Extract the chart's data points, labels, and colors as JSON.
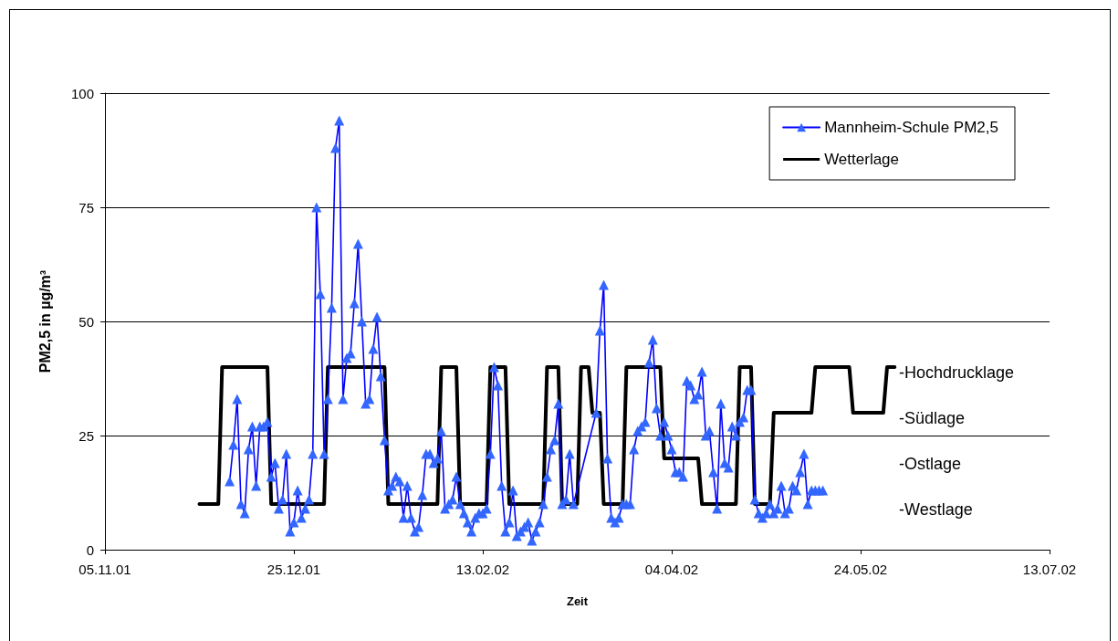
{
  "chart_data": {
    "type": "line",
    "xlabel": "Zeit",
    "ylabel": "PM2,5 in µg/m³",
    "xlim": [
      "2001-11-05",
      "2002-07-13"
    ],
    "xticks": [
      {
        "value": "2001-11-05",
        "label": "05.11.01"
      },
      {
        "value": "2001-12-25",
        "label": "25.12.01"
      },
      {
        "value": "2002-02-13",
        "label": "13.02.02"
      },
      {
        "value": "2002-04-04",
        "label": "04.04.02"
      },
      {
        "value": "2002-05-24",
        "label": "24.05.02"
      },
      {
        "value": "2002-07-13",
        "label": "13.07.02"
      }
    ],
    "ylim": [
      0,
      100
    ],
    "yticks": [
      0,
      25,
      50,
      75,
      100
    ],
    "grid": "y",
    "legend": "top right",
    "series": [
      {
        "name": "Mannheim-Schule PM2,5",
        "color": "#3366ff",
        "marker": "triangle",
        "x": [
          "2001-12-08",
          "2001-12-09",
          "2001-12-10",
          "2001-12-11",
          "2001-12-12",
          "2001-12-13",
          "2001-12-14",
          "2001-12-15",
          "2001-12-16",
          "2001-12-17",
          "2001-12-18",
          "2001-12-19",
          "2001-12-20",
          "2001-12-21",
          "2001-12-22",
          "2001-12-23",
          "2001-12-24",
          "2001-12-25",
          "2001-12-26",
          "2001-12-27",
          "2001-12-28",
          "2001-12-29",
          "2001-12-30",
          "2001-12-31",
          "2002-01-01",
          "2002-01-02",
          "2002-01-03",
          "2002-01-04",
          "2002-01-05",
          "2002-01-06",
          "2002-01-07",
          "2002-01-08",
          "2002-01-09",
          "2002-01-10",
          "2002-01-11",
          "2002-01-12",
          "2002-01-13",
          "2002-01-14",
          "2002-01-15",
          "2002-01-16",
          "2002-01-17",
          "2002-01-18",
          "2002-01-19",
          "2002-01-20",
          "2002-01-21",
          "2002-01-22",
          "2002-01-23",
          "2002-01-24",
          "2002-01-25",
          "2002-01-26",
          "2002-01-27",
          "2002-01-28",
          "2002-01-29",
          "2002-01-30",
          "2002-01-31",
          "2002-02-01",
          "2002-02-02",
          "2002-02-03",
          "2002-02-04",
          "2002-02-05",
          "2002-02-06",
          "2002-02-07",
          "2002-02-08",
          "2002-02-09",
          "2002-02-10",
          "2002-02-11",
          "2002-02-12",
          "2002-02-13",
          "2002-02-14",
          "2002-02-15",
          "2002-02-16",
          "2002-02-17",
          "2002-02-18",
          "2002-02-19",
          "2002-02-20",
          "2002-02-21",
          "2002-02-22",
          "2002-02-23",
          "2002-02-24",
          "2002-02-25",
          "2002-02-26",
          "2002-02-27",
          "2002-02-28",
          "2002-03-01",
          "2002-03-02",
          "2002-03-03",
          "2002-03-04",
          "2002-03-05",
          "2002-03-06",
          "2002-03-07",
          "2002-03-08",
          "2002-03-09",
          "2002-03-15",
          "2002-03-16",
          "2002-03-17",
          "2002-03-18",
          "2002-03-19",
          "2002-03-20",
          "2002-03-21",
          "2002-03-22",
          "2002-03-23",
          "2002-03-24",
          "2002-03-25",
          "2002-03-26",
          "2002-03-27",
          "2002-03-28",
          "2002-03-29",
          "2002-03-30",
          "2002-03-31",
          "2002-04-01",
          "2002-04-02",
          "2002-04-03",
          "2002-04-04",
          "2002-04-05",
          "2002-04-06",
          "2002-04-07",
          "2002-04-08",
          "2002-04-09",
          "2002-04-10",
          "2002-04-11",
          "2002-04-12",
          "2002-04-13",
          "2002-04-14",
          "2002-04-15",
          "2002-04-16",
          "2002-04-17",
          "2002-04-18",
          "2002-04-19",
          "2002-04-20",
          "2002-04-21",
          "2002-04-22",
          "2002-04-23",
          "2002-04-24",
          "2002-04-25",
          "2002-04-26",
          "2002-04-27",
          "2002-04-28",
          "2002-04-29",
          "2002-04-30",
          "2002-05-01",
          "2002-05-02",
          "2002-05-03",
          "2002-05-04",
          "2002-05-05",
          "2002-05-06",
          "2002-05-07",
          "2002-05-08",
          "2002-05-09",
          "2002-05-10",
          "2002-05-11",
          "2002-05-12",
          "2002-05-13",
          "2002-05-14"
        ],
        "values": [
          15,
          23,
          33,
          10,
          8,
          22,
          27,
          14,
          27,
          27,
          28,
          16,
          19,
          9,
          11,
          21,
          4,
          6,
          13,
          7,
          9,
          11,
          21,
          75,
          56,
          21,
          33,
          53,
          88,
          94,
          33,
          42,
          43,
          54,
          67,
          50,
          32,
          33,
          44,
          51,
          38,
          24,
          13,
          14,
          16,
          15,
          7,
          14,
          7,
          4,
          5,
          12,
          21,
          21,
          19,
          20,
          26,
          9,
          10,
          11,
          16,
          10,
          8,
          6,
          4,
          7,
          8,
          8,
          9,
          21,
          40,
          36,
          14,
          4,
          6,
          13,
          3,
          4,
          5,
          6,
          2,
          4,
          6,
          10,
          16,
          22,
          24,
          32,
          10,
          11,
          21,
          10,
          30,
          48,
          58,
          20,
          7,
          6,
          7,
          10,
          10,
          10,
          22,
          26,
          27,
          28,
          41,
          46,
          31,
          25,
          28,
          25,
          22,
          17,
          17,
          16,
          37,
          36,
          33,
          34,
          39,
          25,
          26,
          17,
          9,
          32,
          19,
          18,
          27,
          25,
          28,
          29,
          35,
          35,
          11,
          8,
          7,
          8,
          10,
          8,
          9,
          14,
          8,
          9,
          14,
          13,
          17,
          21,
          10,
          13,
          13,
          13,
          13
        ]
      },
      {
        "name": "Wetterlage",
        "color": "#000000",
        "marker": "none",
        "x": [
          "2001-11-30",
          "2001-12-05",
          "2001-12-06",
          "2001-12-18",
          "2001-12-19",
          "2002-01-02",
          "2002-01-03",
          "2002-01-18",
          "2002-01-19",
          "2002-02-01",
          "2002-02-02",
          "2002-02-06",
          "2002-02-07",
          "2002-02-14",
          "2002-02-15",
          "2002-02-19",
          "2002-02-20",
          "2002-03-01",
          "2002-03-02",
          "2002-03-05",
          "2002-03-06",
          "2002-03-10",
          "2002-03-11",
          "2002-03-13",
          "2002-03-14",
          "2002-03-16",
          "2002-03-17",
          "2002-03-22",
          "2002-03-23",
          "2002-04-01",
          "2002-04-02",
          "2002-04-11",
          "2002-04-12",
          "2002-04-21",
          "2002-04-22",
          "2002-04-25",
          "2002-04-26",
          "2002-04-30",
          "2002-05-01",
          "2002-05-11",
          "2002-05-12",
          "2002-05-21",
          "2002-05-22",
          "2002-05-30",
          "2002-05-31",
          "2002-06-02"
        ],
        "values": [
          10,
          10,
          40,
          40,
          10,
          10,
          40,
          40,
          10,
          10,
          40,
          40,
          10,
          10,
          40,
          40,
          10,
          10,
          40,
          40,
          10,
          10,
          40,
          40,
          30,
          30,
          10,
          10,
          40,
          40,
          20,
          20,
          10,
          10,
          40,
          40,
          10,
          10,
          30,
          30,
          40,
          40,
          30,
          30,
          40,
          40
        ]
      }
    ],
    "annotations": [
      "-Hochdrucklage",
      "-Südlage",
      "-Ostlage",
      "-Westlage"
    ]
  }
}
